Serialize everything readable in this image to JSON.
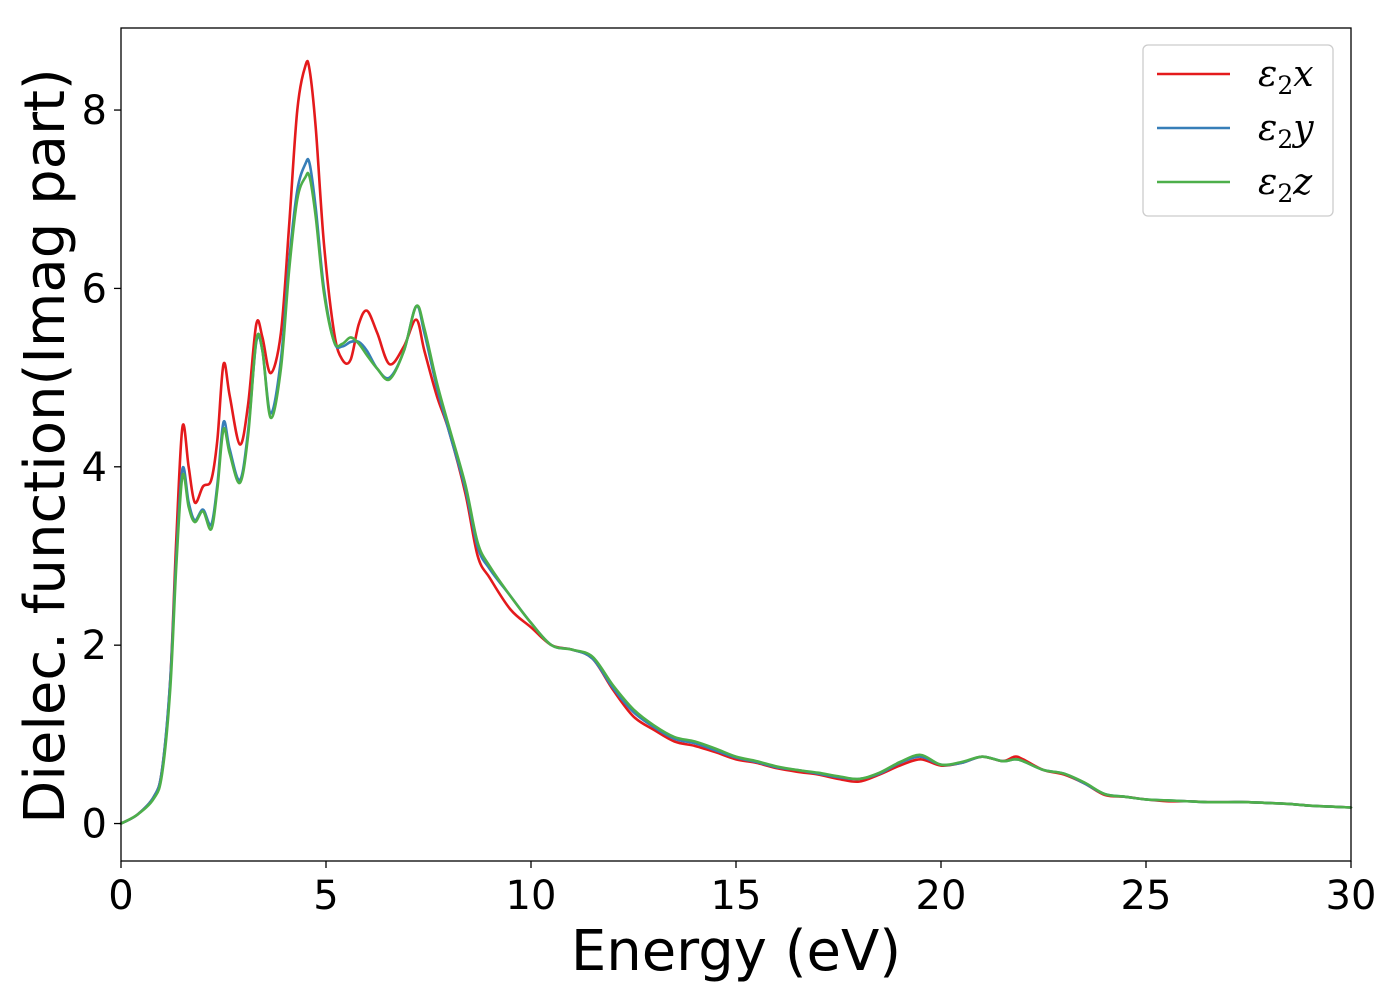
{
  "chart_data": {
    "type": "line",
    "xlabel": "Energy (eV)",
    "ylabel": "Dielec. function(Imag part)",
    "xlim": [
      0,
      30
    ],
    "ylim": [
      -0.42,
      8.92
    ],
    "xticks": [
      0,
      5,
      10,
      15,
      20,
      25,
      30
    ],
    "yticks": [
      0,
      2,
      4,
      6,
      8
    ],
    "grid": false,
    "legend_position": "top-right",
    "series": [
      {
        "name": "ε₂x",
        "legend_base": "ε",
        "legend_sub": "2",
        "legend_var": "x",
        "color": "#e41a1c",
        "x": [
          0,
          0.4,
          0.8,
          1.0,
          1.2,
          1.35,
          1.5,
          1.65,
          1.8,
          2.0,
          2.2,
          2.35,
          2.5,
          2.65,
          2.9,
          3.1,
          3.3,
          3.45,
          3.65,
          3.9,
          4.1,
          4.3,
          4.5,
          4.6,
          4.75,
          4.95,
          5.2,
          5.4,
          5.6,
          5.8,
          6.0,
          6.25,
          6.55,
          6.9,
          7.2,
          7.4,
          7.7,
          8.0,
          8.4,
          8.7,
          9.0,
          9.5,
          10.0,
          10.5,
          11.0,
          11.5,
          12.0,
          12.5,
          13.0,
          13.5,
          14.0,
          14.5,
          15.0,
          15.5,
          16.0,
          16.5,
          17.0,
          17.5,
          18.0,
          18.5,
          19.0,
          19.5,
          20.0,
          20.5,
          21.0,
          21.5,
          21.8,
          22.0,
          22.5,
          23.0,
          23.5,
          24.0,
          24.5,
          25.0,
          25.5,
          26.0,
          26.5,
          27.0,
          27.5,
          28.0,
          28.5,
          29.0,
          29.5,
          30.0
        ],
        "values": [
          0.0,
          0.1,
          0.3,
          0.6,
          1.6,
          3.2,
          4.45,
          4.0,
          3.6,
          3.78,
          3.85,
          4.3,
          5.15,
          4.8,
          4.25,
          4.7,
          5.6,
          5.45,
          5.05,
          5.5,
          6.7,
          8.0,
          8.5,
          8.45,
          7.8,
          6.5,
          5.5,
          5.2,
          5.2,
          5.6,
          5.75,
          5.5,
          5.15,
          5.35,
          5.65,
          5.3,
          4.8,
          4.4,
          3.7,
          3.0,
          2.75,
          2.4,
          2.2,
          2.0,
          1.95,
          1.85,
          1.5,
          1.2,
          1.05,
          0.92,
          0.87,
          0.8,
          0.72,
          0.68,
          0.62,
          0.58,
          0.55,
          0.5,
          0.47,
          0.55,
          0.65,
          0.72,
          0.65,
          0.68,
          0.75,
          0.7,
          0.75,
          0.72,
          0.6,
          0.55,
          0.45,
          0.32,
          0.3,
          0.27,
          0.25,
          0.25,
          0.24,
          0.24,
          0.24,
          0.23,
          0.22,
          0.2,
          0.19,
          0.18
        ]
      },
      {
        "name": "ε₂y",
        "legend_base": "ε",
        "legend_sub": "2",
        "legend_var": "y",
        "color": "#377eb8",
        "x": [
          0,
          0.4,
          0.8,
          1.0,
          1.2,
          1.35,
          1.5,
          1.65,
          1.8,
          2.0,
          2.2,
          2.35,
          2.5,
          2.65,
          2.9,
          3.1,
          3.3,
          3.45,
          3.65,
          3.9,
          4.1,
          4.3,
          4.5,
          4.6,
          4.75,
          4.95,
          5.2,
          5.4,
          5.6,
          5.8,
          6.0,
          6.25,
          6.55,
          6.9,
          7.2,
          7.4,
          7.7,
          8.0,
          8.4,
          8.7,
          9.0,
          9.5,
          10.0,
          10.5,
          11.0,
          11.5,
          12.0,
          12.5,
          13.0,
          13.5,
          14.0,
          14.5,
          15.0,
          15.5,
          16.0,
          16.5,
          17.0,
          17.5,
          18.0,
          18.5,
          19.0,
          19.5,
          20.0,
          20.5,
          21.0,
          21.5,
          21.8,
          22.0,
          22.5,
          23.0,
          23.5,
          24.0,
          24.5,
          25.0,
          25.5,
          26.0,
          26.5,
          27.0,
          27.5,
          28.0,
          28.5,
          29.0,
          29.5,
          30.0
        ],
        "values": [
          0.0,
          0.1,
          0.3,
          0.6,
          1.6,
          3.0,
          3.98,
          3.6,
          3.4,
          3.52,
          3.35,
          3.8,
          4.5,
          4.2,
          3.85,
          4.4,
          5.4,
          5.3,
          4.6,
          5.2,
          6.3,
          7.1,
          7.4,
          7.4,
          6.9,
          6.0,
          5.4,
          5.35,
          5.4,
          5.4,
          5.3,
          5.1,
          5.0,
          5.3,
          5.8,
          5.5,
          4.9,
          4.4,
          3.75,
          3.1,
          2.85,
          2.55,
          2.25,
          2.0,
          1.95,
          1.85,
          1.52,
          1.25,
          1.08,
          0.95,
          0.9,
          0.82,
          0.74,
          0.69,
          0.63,
          0.6,
          0.56,
          0.52,
          0.5,
          0.56,
          0.68,
          0.75,
          0.66,
          0.68,
          0.75,
          0.7,
          0.72,
          0.7,
          0.6,
          0.56,
          0.45,
          0.33,
          0.3,
          0.27,
          0.26,
          0.25,
          0.24,
          0.24,
          0.24,
          0.23,
          0.22,
          0.2,
          0.19,
          0.18
        ]
      },
      {
        "name": "ε₂z",
        "legend_base": "ε",
        "legend_sub": "2",
        "legend_var": "z",
        "color": "#4daf4a",
        "x": [
          0,
          0.4,
          0.8,
          1.0,
          1.2,
          1.35,
          1.5,
          1.65,
          1.8,
          2.0,
          2.2,
          2.35,
          2.5,
          2.65,
          2.9,
          3.1,
          3.3,
          3.45,
          3.65,
          3.9,
          4.1,
          4.3,
          4.5,
          4.6,
          4.75,
          4.95,
          5.2,
          5.4,
          5.6,
          5.8,
          6.0,
          6.25,
          6.55,
          6.9,
          7.2,
          7.4,
          7.7,
          8.0,
          8.4,
          8.7,
          9.0,
          9.5,
          10.0,
          10.5,
          11.0,
          11.5,
          12.0,
          12.5,
          13.0,
          13.5,
          14.0,
          14.5,
          15.0,
          15.5,
          16.0,
          16.5,
          17.0,
          17.5,
          18.0,
          18.5,
          19.0,
          19.5,
          20.0,
          20.5,
          21.0,
          21.5,
          21.8,
          22.0,
          22.5,
          23.0,
          23.5,
          24.0,
          24.5,
          25.0,
          25.5,
          26.0,
          26.5,
          27.0,
          27.5,
          28.0,
          28.5,
          29.0,
          29.5,
          30.0
        ],
        "values": [
          0.0,
          0.1,
          0.28,
          0.55,
          1.5,
          2.9,
          3.9,
          3.55,
          3.38,
          3.5,
          3.3,
          3.75,
          4.42,
          4.15,
          3.82,
          4.35,
          5.42,
          5.3,
          4.55,
          5.1,
          6.2,
          7.0,
          7.25,
          7.25,
          6.8,
          5.95,
          5.4,
          5.38,
          5.45,
          5.38,
          5.25,
          5.1,
          4.98,
          5.3,
          5.8,
          5.55,
          4.95,
          4.45,
          3.8,
          3.15,
          2.88,
          2.55,
          2.25,
          2.0,
          1.95,
          1.87,
          1.55,
          1.28,
          1.1,
          0.97,
          0.92,
          0.84,
          0.75,
          0.7,
          0.64,
          0.6,
          0.57,
          0.53,
          0.5,
          0.57,
          0.69,
          0.77,
          0.66,
          0.69,
          0.75,
          0.7,
          0.72,
          0.7,
          0.6,
          0.56,
          0.46,
          0.33,
          0.3,
          0.27,
          0.26,
          0.25,
          0.24,
          0.24,
          0.24,
          0.23,
          0.22,
          0.2,
          0.19,
          0.18
        ]
      }
    ]
  }
}
